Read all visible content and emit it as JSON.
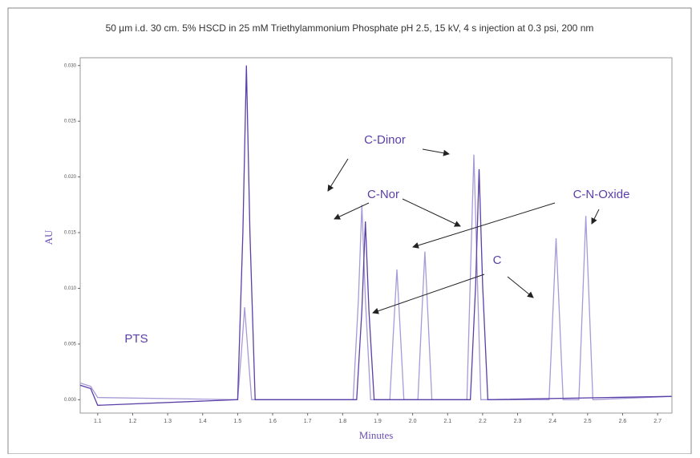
{
  "chart_data": {
    "type": "line",
    "title": "50 µm i.d. 30 cm. 5% HSCD in 25 mM Triethylammonium Phosphate pH 2.5, 15 kV, 4 s injection at 0.3 psi, 200 nm",
    "x_label": "Minutes",
    "y_label": "AU",
    "xlim": [
      1.05,
      2.741
    ],
    "ylim": [
      -0.0012,
      0.0307
    ],
    "xticks": [
      1.1,
      1.2,
      1.3,
      1.4,
      1.5,
      1.6,
      1.7,
      1.8,
      1.9,
      {
        "value": 2,
        "label": "2.0"
      },
      2.1,
      2.2,
      2.3,
      2.4,
      2.5,
      2.6,
      2.7
    ],
    "yticks": [
      {
        "value": 0,
        "label": "0.000"
      },
      {
        "value": 0.005,
        "label": "0.005"
      },
      {
        "value": 0.01,
        "label": "0.010"
      },
      {
        "value": 0.015,
        "label": "0.015"
      },
      {
        "value": 0.02,
        "label": "0.020"
      },
      {
        "value": 0.025,
        "label": "0.025"
      },
      {
        "value": 0.03,
        "label": "0.030"
      }
    ],
    "annotations": [
      "PTS",
      "C-Dinor",
      "C-Nor",
      "C-N-Oxide",
      "C"
    ],
    "series": [
      {
        "color": "#a79ad6",
        "x": [
          1.05,
          1.08,
          1.1,
          1.5,
          1.51,
          1.52,
          1.53,
          1.54,
          1.83,
          1.845,
          1.855,
          1.865,
          1.88,
          1.935,
          1.945,
          1.955,
          1.965,
          1.975,
          2.015,
          2.025,
          2.035,
          2.045,
          2.055,
          2.155,
          2.165,
          2.175,
          2.185,
          2.195,
          2.39,
          2.4,
          2.41,
          2.42,
          2.43,
          2.475,
          2.485,
          2.495,
          2.505,
          2.515,
          2.74
        ],
        "values": [
          0.0015,
          0.0012,
          0.0002,
          0,
          0.004,
          0.0083,
          0.004,
          0,
          0,
          0.009,
          0.0175,
          0.009,
          0,
          0,
          0.006,
          0.0117,
          0.006,
          0,
          0,
          0.0068,
          0.0133,
          0.0068,
          0,
          0,
          0.011,
          0.022,
          0.011,
          0,
          0,
          0.0073,
          0.0145,
          0.0073,
          0,
          0,
          0.0083,
          0.0165,
          0.0083,
          0,
          0.0003
        ]
      },
      {
        "color": "#5a3fa8",
        "x": [
          1.05,
          1.08,
          1.1,
          1.5,
          1.515,
          1.525,
          1.535,
          1.55,
          1.84,
          1.855,
          1.865,
          1.875,
          1.89,
          2.165,
          2.18,
          2.19,
          2.2,
          2.215,
          2.74
        ],
        "values": [
          0.0013,
          0.001,
          -0.0005,
          0,
          0.015,
          0.03,
          0.015,
          0,
          0,
          0.008,
          0.016,
          0.008,
          0,
          0,
          0.0103,
          0.0207,
          0.0103,
          0,
          0.0003
        ]
      }
    ]
  }
}
